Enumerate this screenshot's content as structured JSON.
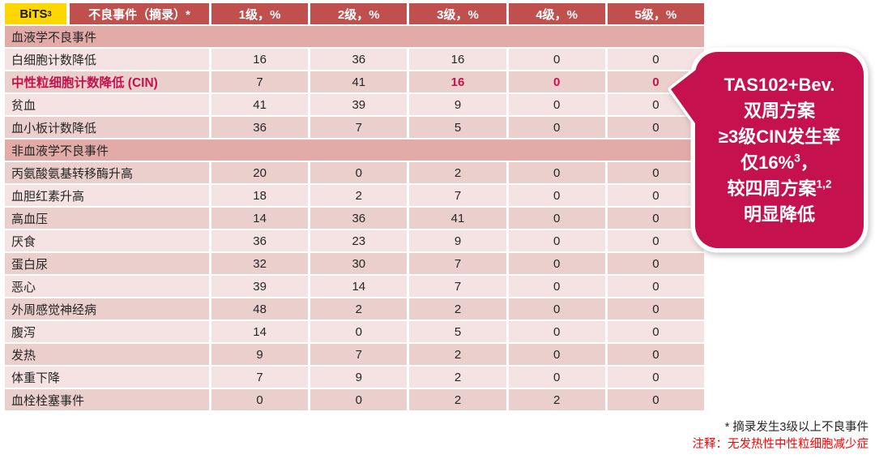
{
  "colors": {
    "header_bg": "#C0504D",
    "section_bg": "#E2ABA8",
    "row_light": "#F4E3E2",
    "row_dark": "#EBCFCD",
    "accent": "#C5114D",
    "badge_yellow": "#FFD700",
    "text": "#262626",
    "footnote_red": "#FF0000"
  },
  "badge": {
    "label": "BiTS",
    "sup": "3"
  },
  "table": {
    "header": {
      "event_col": "不良事件（摘录）*",
      "grade_cols": [
        "1级，%",
        "2级，%",
        "3级，%",
        "4级，%",
        "5级，%"
      ]
    },
    "rows": [
      {
        "type": "section",
        "label": "血液学不良事件"
      },
      {
        "type": "data",
        "label": "白细胞计数降低",
        "values": [
          "16",
          "36",
          "16",
          "0",
          "0"
        ]
      },
      {
        "type": "data",
        "label": "中性粒细胞计数降低 (CIN)",
        "values": [
          "7",
          "41",
          "16",
          "0",
          "0"
        ],
        "highlight": true,
        "red_values": [
          2,
          3,
          4
        ]
      },
      {
        "type": "data",
        "label": "贫血",
        "values": [
          "41",
          "39",
          "9",
          "0",
          "0"
        ]
      },
      {
        "type": "data",
        "label": "血小板计数降低",
        "values": [
          "36",
          "7",
          "5",
          "0",
          "0"
        ]
      },
      {
        "type": "section",
        "label": "非血液学不良事件"
      },
      {
        "type": "data",
        "label": "丙氨酸氨基转移酶升高",
        "values": [
          "20",
          "0",
          "2",
          "0",
          "0"
        ]
      },
      {
        "type": "data",
        "label": "血胆红素升高",
        "values": [
          "18",
          "2",
          "7",
          "0",
          "0"
        ]
      },
      {
        "type": "data",
        "label": "高血压",
        "values": [
          "14",
          "36",
          "41",
          "0",
          "0"
        ]
      },
      {
        "type": "data",
        "label": "厌食",
        "values": [
          "36",
          "23",
          "9",
          "0",
          "0"
        ]
      },
      {
        "type": "data",
        "label": "蛋白尿",
        "values": [
          "32",
          "30",
          "7",
          "0",
          "0"
        ]
      },
      {
        "type": "data",
        "label": "恶心",
        "values": [
          "39",
          "14",
          "7",
          "0",
          "0"
        ]
      },
      {
        "type": "data",
        "label": "外周感觉神经病",
        "values": [
          "48",
          "2",
          "2",
          "0",
          "0"
        ]
      },
      {
        "type": "data",
        "label": "腹泻",
        "values": [
          "14",
          "0",
          "5",
          "0",
          "0"
        ]
      },
      {
        "type": "data",
        "label": "发热",
        "values": [
          "9",
          "7",
          "2",
          "0",
          "0"
        ]
      },
      {
        "type": "data",
        "label": "体重下降",
        "values": [
          "7",
          "9",
          "2",
          "0",
          "0"
        ]
      },
      {
        "type": "data",
        "label": "血栓栓塞事件",
        "values": [
          "0",
          "0",
          "2",
          "2",
          "0"
        ]
      }
    ]
  },
  "callout": {
    "lines": [
      {
        "pre": "TAS102+Bev."
      },
      {
        "pre": "双周方案"
      },
      {
        "pre": "≥3级CIN发生率"
      },
      {
        "pre": "仅16%",
        "sup": "3",
        "post": "，"
      },
      {
        "pre": "较四周方案",
        "sup": "1,2"
      },
      {
        "pre": "明显降低"
      }
    ]
  },
  "footnotes": [
    {
      "text": "* 摘录发生3级以上不良事件",
      "red": false
    },
    {
      "text": "注释：无发热性中性粒细胞减少症",
      "red": true
    }
  ]
}
